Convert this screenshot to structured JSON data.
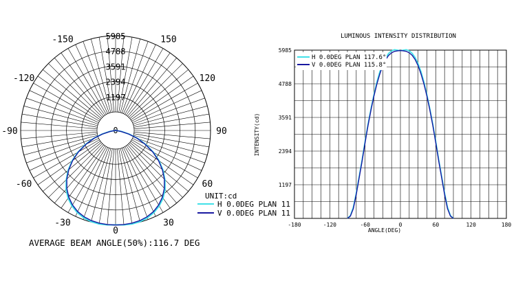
{
  "chart_data": [
    {
      "type": "polar",
      "unit_label": "UNIT:cd",
      "radial_ticks": [
        "1197",
        "2394",
        "3591",
        "4788",
        "5985"
      ],
      "center_label": "0",
      "angle_labels": [
        {
          "angle": 0,
          "text": "0"
        },
        {
          "angle": 30,
          "text": "30"
        },
        {
          "angle": 60,
          "text": "60"
        },
        {
          "angle": 90,
          "text": "90"
        },
        {
          "angle": 120,
          "text": "120"
        },
        {
          "angle": 150,
          "text": "150"
        },
        {
          "angle": -30,
          "text": "-30"
        },
        {
          "angle": -60,
          "text": "-60"
        },
        {
          "angle": -90,
          "text": "-90"
        },
        {
          "angle": -120,
          "text": "-120"
        },
        {
          "angle": -150,
          "text": "-150"
        }
      ],
      "rmax": 5985,
      "series": [
        {
          "name": "H 0.0DEG PLAN 117.6°",
          "legend_text": "H 0.0DEG PLAN 11",
          "color": "#40e0e8",
          "angles": [
            -90,
            -85,
            -80,
            -75,
            -70,
            -65,
            -60,
            -55,
            -50,
            -45,
            -40,
            -35,
            -30,
            -25,
            -20,
            -15,
            -10,
            -5,
            0,
            5,
            10,
            15,
            20,
            25,
            30,
            35,
            40,
            45,
            50,
            55,
            60,
            65,
            70,
            75,
            80,
            85,
            90
          ],
          "values": [
            0,
            100,
            400,
            900,
            1500,
            2100,
            2750,
            3350,
            3900,
            4400,
            4850,
            5220,
            5500,
            5720,
            5870,
            5960,
            6000,
            5985,
            5960,
            5985,
            6000,
            5960,
            5870,
            5720,
            5500,
            5220,
            4850,
            4400,
            3900,
            3350,
            2750,
            2100,
            1500,
            900,
            400,
            100,
            0
          ]
        },
        {
          "name": "V 0.0DEG PLAN 115.8°",
          "legend_text": "V 0.0DEG PLAN 11",
          "color": "#1818a0",
          "angles": [
            -90,
            -85,
            -80,
            -75,
            -70,
            -65,
            -60,
            -55,
            -50,
            -45,
            -40,
            -35,
            -30,
            -25,
            -20,
            -15,
            -10,
            -5,
            0,
            5,
            10,
            15,
            20,
            25,
            30,
            35,
            40,
            45,
            50,
            55,
            60,
            65,
            70,
            75,
            80,
            85,
            90
          ],
          "values": [
            0,
            80,
            350,
            850,
            1450,
            2050,
            2700,
            3300,
            3850,
            4350,
            4780,
            5140,
            5430,
            5650,
            5800,
            5890,
            5940,
            5960,
            5970,
            5960,
            5940,
            5890,
            5800,
            5650,
            5430,
            5140,
            4780,
            4350,
            3850,
            3300,
            2700,
            2050,
            1450,
            850,
            350,
            80,
            0
          ]
        }
      ]
    },
    {
      "type": "line",
      "title": "LUMINOUS INTENSITY DISTRIBUTION",
      "xlabel": "ANGLE(DEG)",
      "ylabel": "INTENSITY(cd)",
      "xlim": [
        -180,
        180
      ],
      "ylim": [
        0,
        5985
      ],
      "x_ticks": [
        "-180",
        "-120",
        "-60",
        "0",
        "60",
        "120",
        "180"
      ],
      "y_ticks": [
        "1197",
        "2394",
        "3591",
        "4788",
        "5985"
      ],
      "grid": true,
      "legend_position": "top-left",
      "series": [
        {
          "name": "H 0.0DEG PLAN 117.6°",
          "color": "#40e0e8"
        },
        {
          "name": "V 0.0DEG PLAN 115.8°",
          "color": "#1818a0"
        }
      ]
    }
  ],
  "caption": "AVERAGE BEAM ANGLE(50%):116.7 DEG",
  "colors": {
    "h_series": "#40e0e8",
    "v_series": "#1818a0",
    "grid": "#000000"
  }
}
